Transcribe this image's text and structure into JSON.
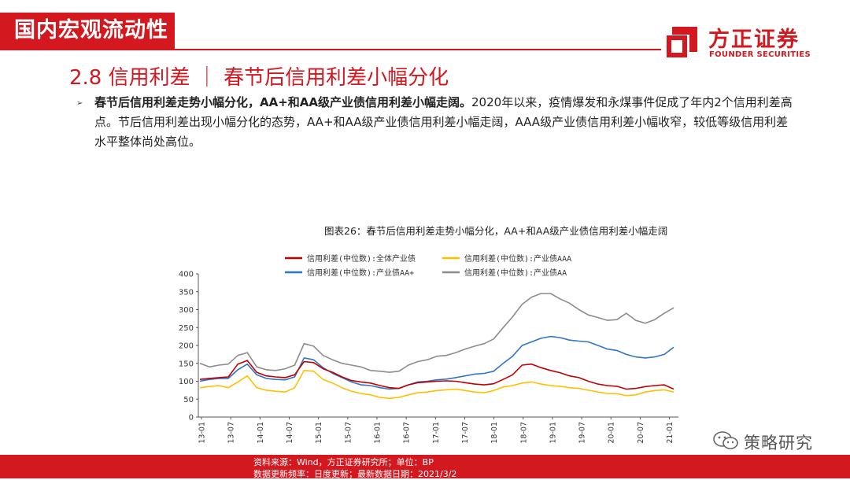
{
  "section_tag": "国内宏观流动性",
  "logo": {
    "cn": "方正证券",
    "en": "FOUNDER SECURITIES"
  },
  "heading": "2.8 信用利差 ｜ 春节后信用利差小幅分化",
  "body": {
    "bold": "春节后信用利差走势小幅分化，AA+和AA级产业债信用利差小幅走阔。",
    "rest": "2020年以来，疫情爆发和永煤事件促成了年内2个信用利差高点。节后信用利差出现小幅分化的态势，AA+和AA级产业债信用利差小幅走阔，AAA级产业债信用利差小幅收窄，较低等级信用利差水平整体尚处高位。"
  },
  "colors": {
    "accent": "#d31820",
    "red": "#c00000",
    "yellow": "#ffc000",
    "blue": "#2e75c8",
    "gray": "#8c8c8c"
  },
  "chart_data": {
    "type": "line",
    "title": "图表26：春节后信用利差走势小幅分化，AA+和AA级产业债信用利差小幅走阔",
    "ylim": [
      0,
      400
    ],
    "yticks": [
      0,
      50,
      100,
      150,
      200,
      250,
      300,
      350,
      400
    ],
    "xlabels": [
      "13-01",
      "13-07",
      "14-01",
      "14-07",
      "15-01",
      "15-07",
      "16-01",
      "16-07",
      "17-01",
      "17-07",
      "18-01",
      "18-07",
      "19-01",
      "19-07",
      "20-01",
      "20-07",
      "21-01"
    ],
    "legend_position": "top",
    "grid": false,
    "series": [
      {
        "name": "信用利差(中位数):全体产业债",
        "color": "#c00000",
        "values": [
          105,
          108,
          110,
          112,
          148,
          158,
          125,
          115,
          112,
          110,
          118,
          155,
          152,
          135,
          125,
          112,
          102,
          98,
          95,
          88,
          82,
          80,
          90,
          96,
          98,
          100,
          101,
          100,
          96,
          92,
          90,
          93,
          105,
          118,
          145,
          148,
          138,
          130,
          124,
          115,
          110,
          100,
          92,
          88,
          86,
          78,
          80,
          85,
          88,
          90,
          78
        ]
      },
      {
        "name": "信用利差(中位数):产业债AAA",
        "color": "#ffc000",
        "values": [
          82,
          85,
          88,
          82,
          98,
          115,
          82,
          75,
          72,
          70,
          82,
          130,
          128,
          105,
          95,
          82,
          72,
          66,
          62,
          55,
          52,
          55,
          62,
          68,
          70,
          74,
          76,
          78,
          74,
          70,
          68,
          74,
          84,
          88,
          95,
          98,
          92,
          88,
          86,
          82,
          80,
          75,
          70,
          66,
          65,
          60,
          62,
          70,
          74,
          76,
          70
        ]
      },
      {
        "name": "信用利差(中位数):产业债AA+",
        "color": "#2e75c8",
        "values": [
          100,
          105,
          108,
          108,
          132,
          148,
          118,
          108,
          105,
          104,
          112,
          165,
          160,
          138,
          122,
          110,
          98,
          90,
          88,
          82,
          78,
          80,
          90,
          98,
          100,
          104,
          106,
          110,
          115,
          120,
          122,
          128,
          150,
          170,
          200,
          210,
          220,
          225,
          222,
          215,
          212,
          210,
          200,
          190,
          186,
          175,
          168,
          165,
          168,
          175,
          195
        ]
      },
      {
        "name": "信用利差(中位数):产业债AA",
        "color": "#8c8c8c",
        "values": [
          150,
          140,
          145,
          148,
          172,
          180,
          140,
          132,
          130,
          135,
          145,
          205,
          198,
          172,
          160,
          150,
          145,
          140,
          130,
          128,
          125,
          128,
          145,
          155,
          160,
          170,
          172,
          180,
          190,
          198,
          205,
          218,
          250,
          280,
          315,
          335,
          345,
          345,
          330,
          318,
          300,
          285,
          278,
          270,
          272,
          290,
          270,
          262,
          272,
          290,
          305
        ]
      }
    ]
  },
  "source_lines": [
    "资料来源：Wind，方正证券研究所；单位：BP",
    "数据更新频率：日度更新；最新数据日期：2021/3/2"
  ],
  "watermark": "策略研究"
}
